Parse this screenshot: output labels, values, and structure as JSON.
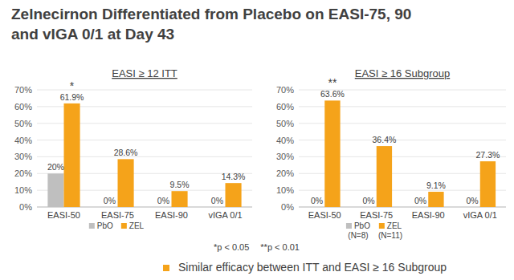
{
  "title_lines": [
    "Zelnecirnon Differentiated from Placebo on EASI-75, 90",
    "and vIGA 0/1 at Day 43"
  ],
  "chart_data": [
    {
      "type": "bar",
      "subtitle": "EASI ≥ 12 ITT",
      "categories": [
        "EASI-50",
        "EASI-75",
        "EASI-90",
        "vIGA 0/1"
      ],
      "series": [
        {
          "name": "PbO",
          "color": "#bfbfbf",
          "values": [
            20,
            0,
            0,
            0
          ],
          "value_labels": [
            "20%",
            "0%",
            "0%",
            "0%"
          ]
        },
        {
          "name": "ZEL",
          "color": "#f5a31a",
          "values": [
            61.9,
            28.6,
            9.5,
            14.3
          ],
          "value_labels": [
            "61.9%",
            "28.6%",
            "9.5%",
            "14.3%"
          ]
        }
      ],
      "ylim": [
        0,
        70
      ],
      "yticks": [
        {
          "value": 0,
          "label": "0%"
        },
        {
          "value": 10,
          "label": "10%"
        },
        {
          "value": 20,
          "label": "20%"
        },
        {
          "value": 30,
          "label": "30%"
        },
        {
          "value": 40,
          "label": "40%"
        },
        {
          "value": 50,
          "label": "50%"
        },
        {
          "value": 60,
          "label": "60%"
        },
        {
          "value": 70,
          "label": "70%"
        }
      ],
      "grid": true,
      "legend": "bottom",
      "data_labels": true,
      "annotations": [
        {
          "text": "*",
          "category": "EASI-50",
          "series": "ZEL"
        }
      ]
    },
    {
      "type": "bar",
      "subtitle": "EASI ≥ 16 Subgroup",
      "categories": [
        "EASI-50",
        "EASI-75",
        "EASI-90",
        "vIGA 0/1"
      ],
      "series": [
        {
          "name": "PbO",
          "note": "(N=8)",
          "color": "#bfbfbf",
          "values": [
            0,
            0,
            0,
            0
          ],
          "value_labels": [
            "0%",
            "0%",
            "0%",
            "0%"
          ]
        },
        {
          "name": "ZEL",
          "note": "(N=11)",
          "color": "#f5a31a",
          "values": [
            63.6,
            36.4,
            9.1,
            27.3
          ],
          "value_labels": [
            "63.6%",
            "36.4%",
            "9.1%",
            "27.3%"
          ]
        }
      ],
      "ylim": [
        0,
        70
      ],
      "yticks": [
        {
          "value": 0,
          "label": "0%"
        },
        {
          "value": 10,
          "label": "10%"
        },
        {
          "value": 20,
          "label": "20%"
        },
        {
          "value": 30,
          "label": "30%"
        },
        {
          "value": 40,
          "label": "40%"
        },
        {
          "value": 50,
          "label": "50%"
        },
        {
          "value": 60,
          "label": "60%"
        },
        {
          "value": 70,
          "label": "70%"
        }
      ],
      "grid": true,
      "legend": "bottom",
      "data_labels": true,
      "annotations": [
        {
          "text": "**",
          "category": "EASI-50",
          "series": "ZEL"
        }
      ]
    }
  ],
  "footnotes": [
    "*p < 0.05",
    "**p < 0.01"
  ],
  "bullet": {
    "text": "Similar efficacy between ITT and EASI ≥ 16 Subgroup",
    "color": "#f5a31a"
  }
}
